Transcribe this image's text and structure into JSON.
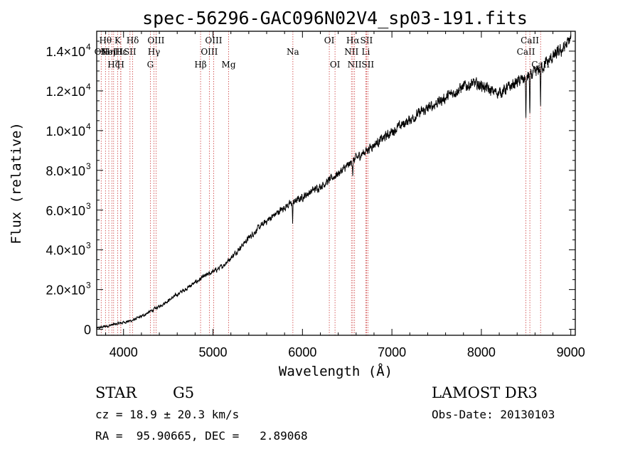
{
  "chart_data": {
    "type": "line",
    "title": "spec-56296-GAC096N02V4_sp03-191.fits",
    "xlabel": "Wavelength (Å)",
    "ylabel": "Flux (relative)",
    "xlim": [
      3700,
      9050
    ],
    "ylim": [
      -300,
      15000
    ],
    "x_ticks": [
      {
        "value": 4000,
        "label": "4000"
      },
      {
        "value": 5000,
        "label": "5000"
      },
      {
        "value": 6000,
        "label": "6000"
      },
      {
        "value": 7000,
        "label": "7000"
      },
      {
        "value": 8000,
        "label": "8000"
      },
      {
        "value": 9000,
        "label": "9000"
      }
    ],
    "y_ticks": [
      {
        "value": 0,
        "mantissa": "0",
        "exponent": ""
      },
      {
        "value": 2000,
        "mantissa": "2.0×10",
        "exponent": "3"
      },
      {
        "value": 4000,
        "mantissa": "4.0×10",
        "exponent": "3"
      },
      {
        "value": 6000,
        "mantissa": "6.0×10",
        "exponent": "3"
      },
      {
        "value": 8000,
        "mantissa": "8.0×10",
        "exponent": "3"
      },
      {
        "value": 10000,
        "mantissa": "1.0×10",
        "exponent": "4"
      },
      {
        "value": 12000,
        "mantissa": "1.2×10",
        "exponent": "4"
      },
      {
        "value": 14000,
        "mantissa": "1.4×10",
        "exponent": "4"
      }
    ],
    "spectrum": {
      "name": "flux",
      "x": [
        3700,
        3800,
        3900,
        4000,
        4100,
        4200,
        4300,
        4400,
        4500,
        4600,
        4700,
        4800,
        4900,
        5000,
        5100,
        5200,
        5300,
        5400,
        5500,
        5600,
        5700,
        5800,
        5900,
        6000,
        6100,
        6200,
        6300,
        6400,
        6500,
        6600,
        6700,
        6800,
        6900,
        7000,
        7100,
        7200,
        7300,
        7400,
        7500,
        7600,
        7700,
        7800,
        7900,
        8000,
        8100,
        8200,
        8300,
        8400,
        8500,
        8600,
        8700,
        8800,
        8900,
        9000
      ],
      "y": [
        50,
        150,
        250,
        350,
        450,
        650,
        900,
        1150,
        1450,
        1750,
        2050,
        2350,
        2650,
        2900,
        3150,
        3600,
        4100,
        4600,
        5050,
        5450,
        5800,
        6150,
        6400,
        6650,
        6950,
        7200,
        7500,
        7850,
        8200,
        8600,
        8950,
        9300,
        9600,
        9950,
        10250,
        10550,
        10850,
        11100,
        11400,
        11650,
        11950,
        12200,
        12350,
        12300,
        12000,
        11900,
        12150,
        12450,
        12650,
        12900,
        13300,
        13700,
        14050,
        14600
      ]
    },
    "absorption_dips": [
      {
        "x": 5890,
        "depth": 1000
      },
      {
        "x": 6563,
        "depth": 600
      },
      {
        "x": 8498,
        "depth": 2200
      },
      {
        "x": 8542,
        "depth": 2000
      },
      {
        "x": 8662,
        "depth": 1800
      }
    ],
    "line_markers": [
      {
        "x": 3750,
        "row": 2,
        "label": "OII"
      },
      {
        "x": 3798,
        "row": 1,
        "label": "Hθ"
      },
      {
        "x": 3835,
        "row": 2,
        "label": "Hη"
      },
      {
        "x": 3869,
        "row": 2,
        "label": "NeIII"
      },
      {
        "x": 3889,
        "row": 3,
        "label": "Hζ"
      },
      {
        "x": 3934,
        "row": 1,
        "label": "K"
      },
      {
        "x": 3968,
        "row": 3,
        "label": "H"
      },
      {
        "x": 3970,
        "row": 2,
        "label": "Hε"
      },
      {
        "x": 4072,
        "row": 2,
        "label": "SII"
      },
      {
        "x": 4102,
        "row": 1,
        "label": "Hδ"
      },
      {
        "x": 4300,
        "row": 3,
        "label": "G"
      },
      {
        "x": 4340,
        "row": 2,
        "label": "Hγ"
      },
      {
        "x": 4363,
        "row": 1,
        "label": "OIII"
      },
      {
        "x": 4861,
        "row": 3,
        "label": "Hβ"
      },
      {
        "x": 4959,
        "row": 2,
        "label": "OIII"
      },
      {
        "x": 5007,
        "row": 1,
        "label": "OIII"
      },
      {
        "x": 5175,
        "row": 3,
        "label": "Mg"
      },
      {
        "x": 5893,
        "row": 2,
        "label": "Na"
      },
      {
        "x": 6300,
        "row": 1,
        "label": "OI"
      },
      {
        "x": 6364,
        "row": 3,
        "label": "OI"
      },
      {
        "x": 6548,
        "row": 2,
        "label": "NII"
      },
      {
        "x": 6563,
        "row": 1,
        "label": "Hα"
      },
      {
        "x": 6583,
        "row": 3,
        "label": "NII"
      },
      {
        "x": 6708,
        "row": 2,
        "label": "Li"
      },
      {
        "x": 6716,
        "row": 1,
        "label": "SII"
      },
      {
        "x": 6731,
        "row": 3,
        "label": "SII"
      },
      {
        "x": 8498,
        "row": 2,
        "label": "CaII"
      },
      {
        "x": 8542,
        "row": 1,
        "label": "CaII"
      },
      {
        "x": 8662,
        "row": 3,
        "label": "CaII"
      }
    ]
  },
  "info": {
    "object_type": "STAR",
    "subclass": "G5",
    "survey": "LAMOST DR3",
    "redshift": "cz = 18.9 ± 20.3 km/s",
    "obs_date": "Obs-Date: 20130103",
    "coords": "RA =  95.90665, DEC =   2.89068"
  },
  "colors": {
    "axis": "#000000",
    "spectrum": "#000000",
    "line_marker": "#cc3a3a"
  }
}
